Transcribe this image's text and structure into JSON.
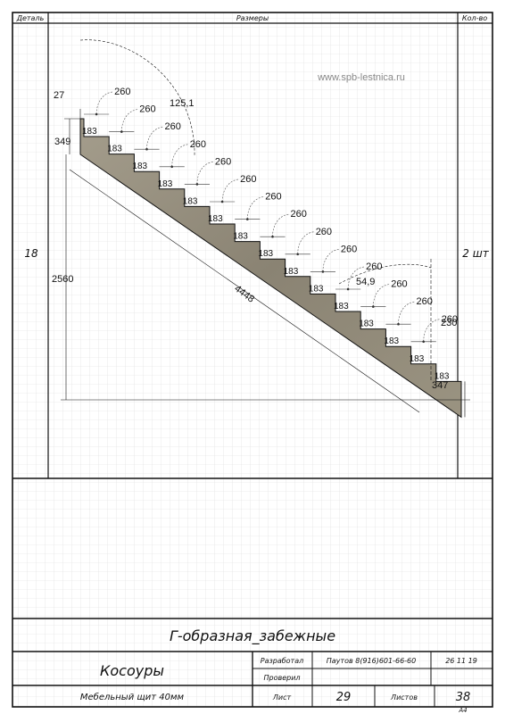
{
  "header": {
    "col_detail": "Деталь",
    "col_dims": "Размеры",
    "col_qty": "Кол-во"
  },
  "watermark": "www.spb-lestnica.ru",
  "row": {
    "detail": "18",
    "qty": "2 шт"
  },
  "stair": {
    "steps": 15,
    "rise_label": "183",
    "tread_label": "260",
    "top_offset": "27",
    "top_height": "349",
    "bottom_height": "347",
    "total_height": "2560",
    "length": "4448",
    "first_tread": "125,1",
    "angle": "54,9",
    "last_tread": "230",
    "colors": {
      "wood": "#8f8878",
      "line": "#111111",
      "grid": "#d9d9d9"
    }
  },
  "title_block": {
    "project": "Г-образная_забежные",
    "part": "Косоуры",
    "material": "Мебельный щит 40мм",
    "developed_label": "Разработал",
    "developer": "Паутов 8(916)601-66-60",
    "date": "26 11 19",
    "checked_label": "Проверил",
    "sheet_label": "Лист",
    "sheet_no": "29",
    "sheets_label": "Листов",
    "sheets_total": "38",
    "format": "A4"
  }
}
